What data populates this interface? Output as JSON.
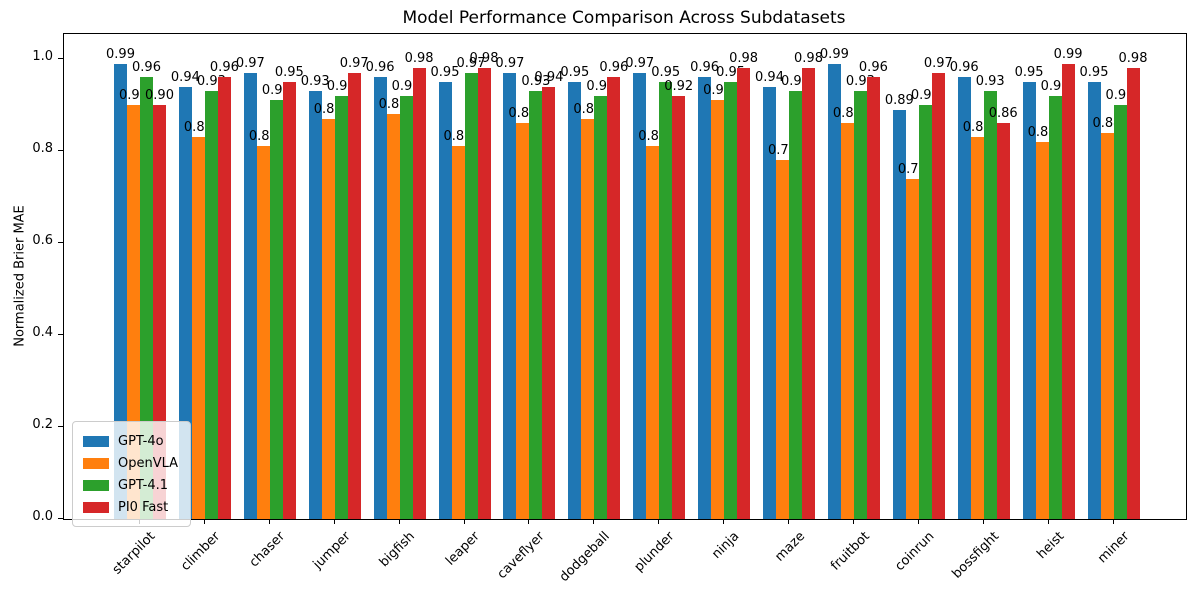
{
  "chart_data": {
    "type": "bar",
    "title": "Model Performance Comparison Across Subdatasets",
    "xlabel": "",
    "ylabel": "Normalized Brier MAE",
    "ylim": [
      0,
      1.054
    ],
    "ytick_values": [
      0.0,
      0.2,
      0.4,
      0.6,
      0.8,
      1.0
    ],
    "ytick_labels": [
      "0.0",
      "0.2",
      "0.4",
      "0.6",
      "0.8",
      "1.0"
    ],
    "grid": false,
    "bar_value_labels": true,
    "legend_position": "lower left",
    "categories": [
      "starpilot",
      "climber",
      "chaser",
      "jumper",
      "bigfish",
      "leaper",
      "caveflyer",
      "dodgeball",
      "plunder",
      "ninja",
      "maze",
      "fruitbot",
      "coinrun",
      "bossfight",
      "heist",
      "miner"
    ],
    "series": [
      {
        "name": "GPT-4o",
        "color": "#1f77b4",
        "values": [
          0.99,
          0.94,
          0.97,
          0.93,
          0.96,
          0.95,
          0.97,
          0.95,
          0.97,
          0.96,
          0.94,
          0.99,
          0.89,
          0.96,
          0.95,
          0.95
        ]
      },
      {
        "name": "OpenVLA",
        "color": "#ff7f0e",
        "values": [
          0.9,
          0.83,
          0.81,
          0.87,
          0.88,
          0.81,
          0.86,
          0.87,
          0.81,
          0.91,
          0.78,
          0.86,
          0.74,
          0.83,
          0.82,
          0.84
        ]
      },
      {
        "name": "GPT-4.1",
        "color": "#2ca02c",
        "values": [
          0.96,
          0.93,
          0.91,
          0.92,
          0.92,
          0.97,
          0.93,
          0.92,
          0.95,
          0.95,
          0.93,
          0.93,
          0.9,
          0.93,
          0.92,
          0.9
        ]
      },
      {
        "name": "PI0 Fast",
        "color": "#d62728",
        "values": [
          0.9,
          0.96,
          0.95,
          0.97,
          0.98,
          0.98,
          0.94,
          0.96,
          0.92,
          0.98,
          0.98,
          0.96,
          0.97,
          0.86,
          0.99,
          0.98
        ]
      }
    ]
  }
}
